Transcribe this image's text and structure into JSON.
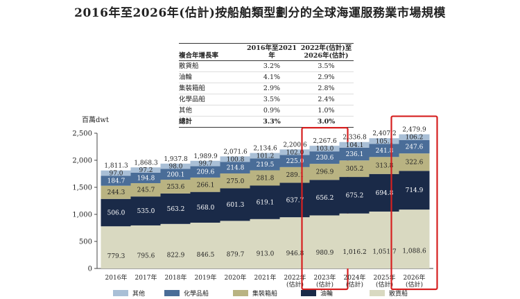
{
  "title": "2016年至2026年(估計)按船舶類型劃分的全球海運服務業市場規模",
  "cagr_table": {
    "headers": [
      "複合年增長率",
      "2016年至2021年",
      "2022年(估計)至2026年(估計)"
    ],
    "rows": [
      {
        "label": "散貨船",
        "v1": "3.2%",
        "v2": "3.5%"
      },
      {
        "label": "油輪",
        "v1": "4.1%",
        "v2": "2.9%"
      },
      {
        "label": "集裝箱船",
        "v1": "2.9%",
        "v2": "2.8%"
      },
      {
        "label": "化學品船",
        "v1": "3.5%",
        "v2": "2.4%"
      },
      {
        "label": "其他",
        "v1": "0.9%",
        "v2": "1.0%"
      }
    ],
    "total": {
      "label": "總計",
      "v1": "3.3%",
      "v2": "3.0%"
    }
  },
  "chart_data": {
    "type": "bar",
    "stacked": true,
    "ylabel": "百萬dwt",
    "ylim": [
      0,
      2500
    ],
    "yticks": [
      "0",
      "500",
      "1,000",
      "1,500",
      "2,000",
      "2,500"
    ],
    "grid": false,
    "legend_position": "bottom",
    "categories": [
      [
        "2016年"
      ],
      [
        "2017年"
      ],
      [
        "2018年"
      ],
      [
        "2019年"
      ],
      [
        "2020年"
      ],
      [
        "2021年"
      ],
      [
        "2022年",
        "(估計)"
      ],
      [
        "2023年",
        "(估計)"
      ],
      [
        "2024年",
        "(估計)"
      ],
      [
        "2025年",
        "(估計)"
      ],
      [
        "2026年",
        "(估計)"
      ]
    ],
    "totals": [
      "1,811.3",
      "1,868.3",
      "1,937.8",
      "1,989.9",
      "2,071.6",
      "2,134.6",
      "2,200.6",
      "2,267.6",
      "2,336.8",
      "2,407.2",
      "2,479.9"
    ],
    "series": [
      {
        "name": "散貨船",
        "color": "#d9d9c1",
        "values": [
          779.3,
          795.6,
          822.9,
          846.5,
          879.7,
          913.0,
          946.8,
          980.9,
          1016.2,
          1051.7,
          1088.6
        ],
        "labels": [
          "779.3",
          "795.6",
          "822.9",
          "846.5",
          "879.7",
          "913.0",
          "946.8",
          "980.9",
          "1,016.2",
          "1,051.7",
          "1,088.6"
        ]
      },
      {
        "name": "油輪",
        "color": "#1a2a48",
        "values": [
          506.0,
          535.0,
          563.2,
          568.0,
          601.3,
          619.1,
          637.7,
          656.2,
          675.2,
          694.8,
          714.9
        ],
        "labels": [
          "506.0",
          "535.0",
          "563.2",
          "568.0",
          "601.3",
          "619.1",
          "637.7",
          "656.2",
          "675.2",
          "694.8",
          "714.9"
        ]
      },
      {
        "name": "集裝箱船",
        "color": "#b9b382",
        "values": [
          244.3,
          245.7,
          253.6,
          266.1,
          275.0,
          281.8,
          289.1,
          296.9,
          305.2,
          313.8,
          322.6
        ],
        "labels": [
          "244.3",
          "245.7",
          "253.6",
          "266.1",
          "275.0",
          "281.8",
          "289.1",
          "296.9",
          "305.2",
          "313.8",
          "322.6"
        ]
      },
      {
        "name": "化學品船",
        "color": "#4a6d98",
        "values": [
          184.7,
          194.8,
          200.1,
          209.6,
          214.8,
          219.5,
          225.0,
          230.6,
          236.1,
          241.8,
          247.6
        ],
        "labels": [
          "184.7",
          "194.8",
          "200.1",
          "209.6",
          "214.8",
          "219.5",
          "225.0",
          "230.6",
          "236.1",
          "241.8",
          "247.6"
        ]
      },
      {
        "name": "其他",
        "color": "#a9bfd6",
        "values": [
          97.0,
          97.2,
          98.0,
          99.7,
          100.8,
          101.2,
          102.0,
          103.0,
          104.1,
          105.1,
          106.2
        ],
        "labels": [
          "97.0",
          "97.2",
          "98.0",
          "99.7",
          "100.8",
          "101.2",
          "102.0",
          "103.0",
          "104.1",
          "105.1",
          "106.2"
        ]
      }
    ],
    "legend_order": [
      "其他",
      "化學品船",
      "集裝箱船",
      "油輪",
      "散貨船"
    ],
    "highlighted_categories": [
      7,
      10
    ],
    "highlight_color": "#d62020"
  }
}
